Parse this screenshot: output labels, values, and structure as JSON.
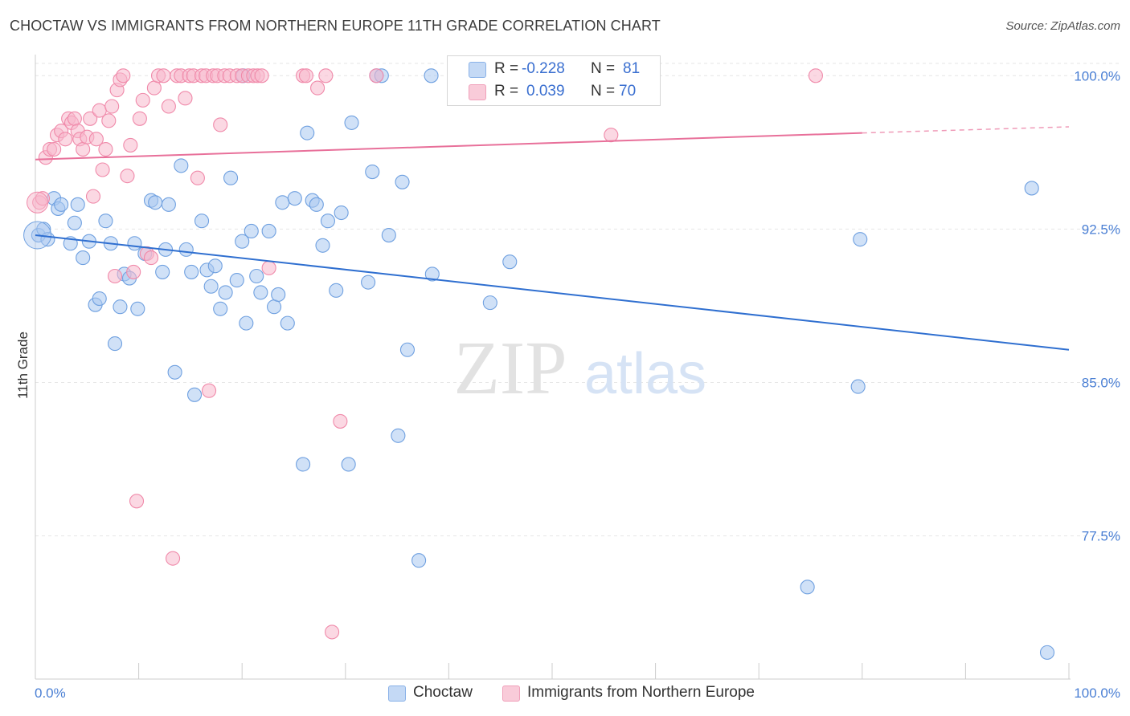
{
  "title": "CHOCTAW VS IMMIGRANTS FROM NORTHERN EUROPE 11TH GRADE CORRELATION CHART",
  "source": "Source: ZipAtlas.com",
  "watermark": {
    "zip": "ZIP",
    "atlas": "atlas"
  },
  "legend": {
    "rows": [
      {
        "r_label": "R =",
        "r_value": "-0.228",
        "n_label": "N =",
        "n_value": "81",
        "color": "#aac8f0"
      },
      {
        "r_label": "R =",
        "r_value": "0.039",
        "n_label": "N =",
        "n_value": "70",
        "color": "#f7b8cc"
      }
    ]
  },
  "bottom_legend": [
    {
      "label": "Choctaw",
      "color": "#aac8f0"
    },
    {
      "label": "Immigrants from Northern Europe",
      "color": "#f7b8cc"
    }
  ],
  "chart_data": {
    "type": "scatter",
    "title": "CHOCTAW VS IMMIGRANTS FROM NORTHERN EUROPE 11TH GRADE CORRELATION CHART",
    "xlabel": "",
    "ylabel": "11th Grade",
    "xlim": [
      0,
      100
    ],
    "ylim": [
      70.5,
      100.6
    ],
    "x_tick_labels": [
      "0.0%",
      "100.0%"
    ],
    "y_ticks": [
      {
        "value": 100.0,
        "label": "100.0%"
      },
      {
        "value": 92.5,
        "label": "92.5%"
      },
      {
        "value": 85.0,
        "label": "85.0%"
      },
      {
        "value": 77.5,
        "label": "77.5%"
      }
    ],
    "grid": true,
    "legend_position": "top-center",
    "series": [
      {
        "name": "Choctaw",
        "color": "#6fa0e0",
        "fill": "#aac8f0",
        "trend": {
          "x": [
            0,
            100
          ],
          "y": [
            92.2,
            86.6
          ],
          "color": "#2f6fd0"
        },
        "points": [
          [
            0.3,
            92.2
          ],
          [
            0.8,
            92.5
          ],
          [
            1.2,
            92.0
          ],
          [
            1.8,
            94.0
          ],
          [
            2.2,
            93.5
          ],
          [
            2.5,
            93.7
          ],
          [
            3.4,
            91.8
          ],
          [
            3.8,
            92.8
          ],
          [
            4.1,
            93.7
          ],
          [
            4.6,
            91.1
          ],
          [
            5.2,
            91.9
          ],
          [
            5.8,
            88.8
          ],
          [
            6.2,
            89.1
          ],
          [
            6.8,
            92.9
          ],
          [
            7.3,
            91.8
          ],
          [
            7.7,
            86.9
          ],
          [
            8.2,
            88.7
          ],
          [
            8.6,
            90.3
          ],
          [
            9.1,
            90.1
          ],
          [
            9.6,
            91.8
          ],
          [
            9.9,
            88.6
          ],
          [
            10.6,
            91.3
          ],
          [
            11.2,
            93.9
          ],
          [
            11.6,
            93.8
          ],
          [
            12.3,
            90.4
          ],
          [
            12.6,
            91.5
          ],
          [
            12.9,
            93.7
          ],
          [
            13.5,
            85.5
          ],
          [
            14.1,
            95.6
          ],
          [
            14.6,
            91.5
          ],
          [
            15.1,
            90.4
          ],
          [
            15.4,
            84.4
          ],
          [
            16.1,
            92.9
          ],
          [
            16.6,
            90.5
          ],
          [
            17.0,
            89.7
          ],
          [
            17.4,
            90.7
          ],
          [
            17.9,
            88.6
          ],
          [
            18.4,
            89.4
          ],
          [
            18.9,
            95.0
          ],
          [
            19.5,
            90.0
          ],
          [
            20.0,
            91.9
          ],
          [
            20.4,
            87.9
          ],
          [
            20.9,
            92.4
          ],
          [
            21.4,
            90.2
          ],
          [
            21.8,
            89.4
          ],
          [
            22.6,
            92.4
          ],
          [
            23.1,
            88.7
          ],
          [
            23.5,
            89.3
          ],
          [
            23.9,
            93.8
          ],
          [
            24.4,
            87.9
          ],
          [
            25.1,
            94.0
          ],
          [
            25.9,
            81.0
          ],
          [
            26.3,
            97.2
          ],
          [
            26.8,
            93.9
          ],
          [
            27.2,
            93.7
          ],
          [
            27.8,
            91.7
          ],
          [
            28.3,
            92.9
          ],
          [
            29.1,
            89.5
          ],
          [
            29.6,
            93.3
          ],
          [
            30.3,
            81.0
          ],
          [
            30.6,
            97.7
          ],
          [
            32.2,
            89.9
          ],
          [
            32.6,
            95.3
          ],
          [
            33.0,
            100.0
          ],
          [
            33.5,
            100.0
          ],
          [
            34.2,
            92.2
          ],
          [
            35.1,
            82.4
          ],
          [
            35.5,
            94.8
          ],
          [
            36.0,
            86.6
          ],
          [
            37.1,
            76.3
          ],
          [
            38.3,
            100.0
          ],
          [
            38.4,
            90.3
          ],
          [
            44.0,
            88.9
          ],
          [
            45.9,
            90.9
          ],
          [
            57.5,
            100.0
          ],
          [
            74.7,
            75.0
          ],
          [
            79.6,
            84.8
          ],
          [
            79.8,
            92.0
          ],
          [
            96.4,
            94.5
          ],
          [
            97.9,
            71.8
          ],
          [
            20.1,
            100.0
          ]
        ]
      },
      {
        "name": "Immigrants from Northern Europe",
        "color": "#f08aaa",
        "fill": "#f7b8cc",
        "trend": {
          "x": [
            0,
            80,
            100
          ],
          "y": [
            95.9,
            97.2,
            97.5
          ],
          "color": "#e8709a"
        },
        "points": [
          [
            0.4,
            93.8
          ],
          [
            0.7,
            94.0
          ],
          [
            1.0,
            96.0
          ],
          [
            1.4,
            96.4
          ],
          [
            1.8,
            96.4
          ],
          [
            2.1,
            97.1
          ],
          [
            2.5,
            97.3
          ],
          [
            2.9,
            96.9
          ],
          [
            3.2,
            97.9
          ],
          [
            3.5,
            97.7
          ],
          [
            3.8,
            97.9
          ],
          [
            4.1,
            97.3
          ],
          [
            4.3,
            96.9
          ],
          [
            4.6,
            96.4
          ],
          [
            5.0,
            97.0
          ],
          [
            5.3,
            97.9
          ],
          [
            5.6,
            94.1
          ],
          [
            5.9,
            96.9
          ],
          [
            6.2,
            98.3
          ],
          [
            6.5,
            95.4
          ],
          [
            6.8,
            96.4
          ],
          [
            7.1,
            97.8
          ],
          [
            7.4,
            98.5
          ],
          [
            7.7,
            90.2
          ],
          [
            7.9,
            99.3
          ],
          [
            8.2,
            99.8
          ],
          [
            8.5,
            100.0
          ],
          [
            8.9,
            95.1
          ],
          [
            9.2,
            96.6
          ],
          [
            9.5,
            90.4
          ],
          [
            9.8,
            79.2
          ],
          [
            10.1,
            97.9
          ],
          [
            10.4,
            98.8
          ],
          [
            10.8,
            91.3
          ],
          [
            11.2,
            91.1
          ],
          [
            11.5,
            99.4
          ],
          [
            11.9,
            100.0
          ],
          [
            12.4,
            100.0
          ],
          [
            12.9,
            98.5
          ],
          [
            13.3,
            76.4
          ],
          [
            13.7,
            100.0
          ],
          [
            14.1,
            100.0
          ],
          [
            14.5,
            98.9
          ],
          [
            14.9,
            100.0
          ],
          [
            15.3,
            100.0
          ],
          [
            15.7,
            95.0
          ],
          [
            16.1,
            100.0
          ],
          [
            16.5,
            100.0
          ],
          [
            16.8,
            84.6
          ],
          [
            17.2,
            100.0
          ],
          [
            17.6,
            100.0
          ],
          [
            17.9,
            97.6
          ],
          [
            18.3,
            100.0
          ],
          [
            18.8,
            100.0
          ],
          [
            19.5,
            100.0
          ],
          [
            20.0,
            100.0
          ],
          [
            20.6,
            100.0
          ],
          [
            21.1,
            100.0
          ],
          [
            21.5,
            100.0
          ],
          [
            21.9,
            100.0
          ],
          [
            22.6,
            90.6
          ],
          [
            25.9,
            100.0
          ],
          [
            26.2,
            100.0
          ],
          [
            27.3,
            99.4
          ],
          [
            28.1,
            100.0
          ],
          [
            28.7,
            72.8
          ],
          [
            29.5,
            83.1
          ],
          [
            33.0,
            100.0
          ],
          [
            55.7,
            97.1
          ],
          [
            75.5,
            100.0
          ]
        ]
      }
    ]
  }
}
